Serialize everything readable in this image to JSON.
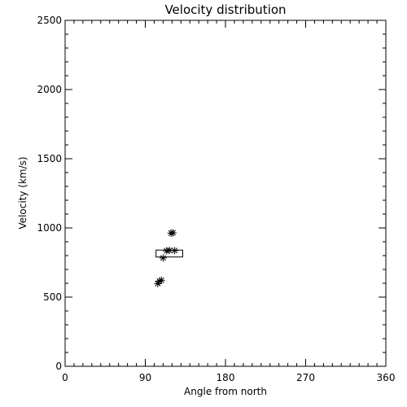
{
  "chart_data": {
    "type": "scatter",
    "title": "Velocity distribution",
    "xlabel": "Angle from north",
    "ylabel": "Velocity (km/s)",
    "xlim": [
      0,
      360
    ],
    "ylim": [
      0,
      2500
    ],
    "xticks": [
      0,
      90,
      180,
      270,
      360
    ],
    "yticks": [
      0,
      500,
      1000,
      1500,
      2000,
      2500
    ],
    "grid": false,
    "series": [
      {
        "marker": "asterisk",
        "points": [
          {
            "x": 121,
            "y": 965
          },
          {
            "x": 119,
            "y": 962
          },
          {
            "x": 117,
            "y": 838
          },
          {
            "x": 123,
            "y": 836
          },
          {
            "x": 114,
            "y": 835
          },
          {
            "x": 110,
            "y": 783
          },
          {
            "x": 108,
            "y": 622
          },
          {
            "x": 106,
            "y": 615
          },
          {
            "x": 104,
            "y": 598
          }
        ]
      }
    ],
    "summary_box": {
      "x_min": 102,
      "x_max": 132,
      "y_min": 790,
      "y_max": 840
    }
  }
}
